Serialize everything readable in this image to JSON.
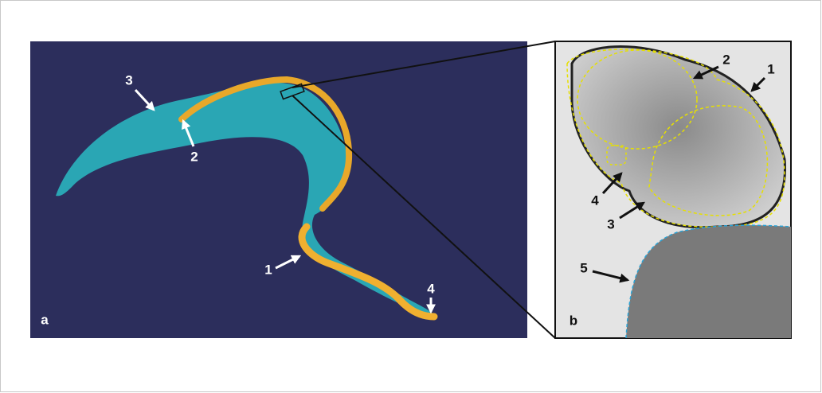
{
  "panels": [
    {
      "label": "a",
      "annotations": [
        "3",
        "2",
        "1",
        "4"
      ]
    },
    {
      "label": "b",
      "annotations": [
        "2",
        "1",
        "4",
        "3",
        "5"
      ]
    }
  ]
}
